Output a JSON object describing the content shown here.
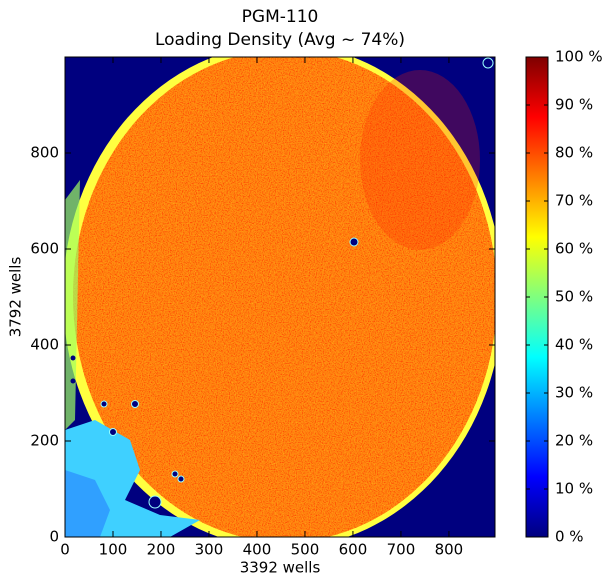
{
  "chart_data": {
    "type": "image",
    "title": "PGM-110",
    "subtitle": "Loading Density (Avg ~ 74%)",
    "x_label": "3392 wells",
    "y_label": "3792 wells",
    "xlim": [
      0,
      896
    ],
    "ylim": [
      0,
      1000
    ],
    "xticks": [
      0,
      100,
      200,
      300,
      400,
      500,
      600,
      700,
      800
    ],
    "yticks": [
      0,
      200,
      400,
      600,
      800
    ],
    "colorbar": {
      "lim": [
        0,
        100
      ],
      "ticks": [
        {
          "value": 0,
          "label": "0 %"
        },
        {
          "value": 10,
          "label": "10 %"
        },
        {
          "value": 20,
          "label": "20 %"
        },
        {
          "value": 30,
          "label": "30 %"
        },
        {
          "value": 40,
          "label": "40 %"
        },
        {
          "value": 50,
          "label": "50 %"
        },
        {
          "value": 60,
          "label": "60 %"
        },
        {
          "value": 70,
          "label": "70 %"
        },
        {
          "value": 80,
          "label": "80 %"
        },
        {
          "value": 90,
          "label": "90 %"
        },
        {
          "value": 100,
          "label": "100 %"
        }
      ],
      "colormap": [
        "#00007f",
        "#0000ff",
        "#007fff",
        "#00ffff",
        "#7fff7f",
        "#ffff00",
        "#ff7f00",
        "#ff0000",
        "#7f0000"
      ]
    }
  }
}
